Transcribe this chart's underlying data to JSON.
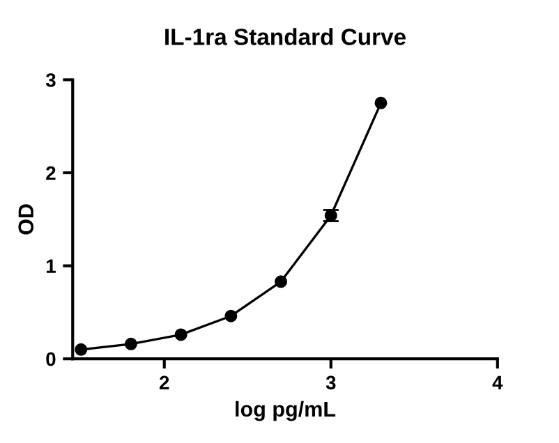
{
  "chart_data": {
    "type": "scatter",
    "title": "IL-1ra Standard Curve",
    "xlabel": "log pg/mL",
    "ylabel": "OD",
    "xlim": [
      1.45,
      4
    ],
    "xticks": [
      2,
      3,
      4
    ],
    "ylim": [
      0,
      3
    ],
    "yticks": [
      0,
      1,
      2,
      3
    ],
    "grid": false,
    "series": [
      {
        "type": "line",
        "color": "#000000",
        "marker": "none",
        "x": [
          1.5,
          1.8,
          2.1,
          2.4,
          2.7,
          3.0,
          3.3
        ],
        "values": [
          0.1,
          0.16,
          0.26,
          0.46,
          0.83,
          1.54,
          2.75
        ]
      },
      {
        "color": "#000000",
        "marker": "circle",
        "x": [
          1.5,
          1.8,
          2.1,
          2.4,
          2.7,
          3.0,
          3.3
        ],
        "values": [
          0.1,
          0.16,
          0.26,
          0.46,
          0.83,
          1.54,
          2.75
        ],
        "errors": [
          null,
          null,
          null,
          null,
          null,
          0.06,
          null
        ]
      }
    ]
  }
}
